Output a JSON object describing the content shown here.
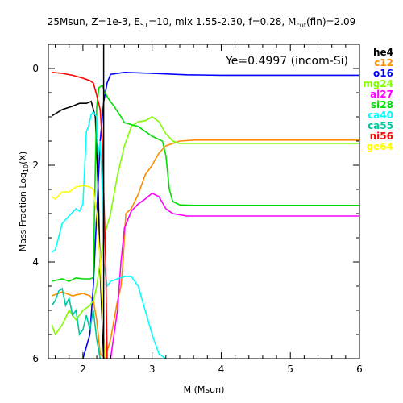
{
  "chart_data": {
    "type": "line",
    "title": {
      "part1": "25Msun, Z=1e-3, E",
      "e_sub": "51",
      "part2": "=10, mix 1.55-2.30, f=0.28, M",
      "m_sub": "cut",
      "part3": "(fin)=2.09"
    },
    "xlabel": "M (Msun)",
    "ylabel": {
      "main": "Mass Fraction Log",
      "sub": "10",
      "tail": "(X)"
    },
    "xlim": [
      1.5,
      6
    ],
    "ylim": [
      -6,
      0.5
    ],
    "x_ticks": [
      "2",
      "3",
      "4",
      "5",
      "6"
    ],
    "y_ticks": [
      "0",
      "2",
      "4",
      "6"
    ],
    "y_tick_values": [
      0,
      -2,
      -4,
      -6
    ],
    "x_tick_values": [
      2,
      3,
      4,
      5,
      6
    ],
    "annotation": "Ye=0.4997 (incom-Si)",
    "vline_x": 2.3,
    "series": [
      {
        "name": "he4",
        "color": "#000000",
        "points": [
          [
            1.55,
            -0.98
          ],
          [
            1.7,
            -0.85
          ],
          [
            1.85,
            -0.78
          ],
          [
            1.95,
            -0.72
          ],
          [
            2.05,
            -0.72
          ],
          [
            2.12,
            -0.68
          ],
          [
            2.18,
            -1.0
          ],
          [
            2.22,
            -2.5
          ],
          [
            2.25,
            -4.2
          ],
          [
            2.3,
            -6.0
          ]
        ]
      },
      {
        "name": "c12",
        "color": "#ff8c00",
        "points": [
          [
            1.55,
            -4.7
          ],
          [
            1.7,
            -4.62
          ],
          [
            1.85,
            -4.7
          ],
          [
            2.0,
            -4.65
          ],
          [
            2.1,
            -4.7
          ],
          [
            2.15,
            -4.8
          ],
          [
            2.2,
            -5.2
          ],
          [
            2.25,
            -5.9
          ],
          [
            2.32,
            -6.0
          ],
          [
            2.4,
            -5.6
          ],
          [
            2.5,
            -4.8
          ],
          [
            2.55,
            -4.5
          ],
          [
            2.58,
            -4.0
          ],
          [
            2.62,
            -3.0
          ],
          [
            2.7,
            -2.9
          ],
          [
            2.8,
            -2.6
          ],
          [
            2.9,
            -2.2
          ],
          [
            3.0,
            -2.0
          ],
          [
            3.1,
            -1.75
          ],
          [
            3.2,
            -1.6
          ],
          [
            3.4,
            -1.5
          ],
          [
            3.6,
            -1.48
          ],
          [
            4.0,
            -1.48
          ],
          [
            5.0,
            -1.48
          ],
          [
            6.0,
            -1.48
          ]
        ]
      },
      {
        "name": "o16",
        "color": "#0000ff",
        "points": [
          [
            2.0,
            -6.0
          ],
          [
            2.1,
            -5.5
          ],
          [
            2.15,
            -4.5
          ],
          [
            2.2,
            -3.0
          ],
          [
            2.25,
            -1.5
          ],
          [
            2.3,
            -0.7
          ],
          [
            2.35,
            -0.3
          ],
          [
            2.4,
            -0.12
          ],
          [
            2.6,
            -0.08
          ],
          [
            3.0,
            -0.1
          ],
          [
            3.5,
            -0.13
          ],
          [
            4.0,
            -0.14
          ],
          [
            5.0,
            -0.14
          ],
          [
            6.0,
            -0.14
          ]
        ]
      },
      {
        "name": "mg24",
        "color": "#80ff00",
        "points": [
          [
            1.55,
            -5.3
          ],
          [
            1.6,
            -5.5
          ],
          [
            1.7,
            -5.3
          ],
          [
            1.8,
            -5.0
          ],
          [
            1.9,
            -5.2
          ],
          [
            2.0,
            -5.0
          ],
          [
            2.1,
            -4.9
          ],
          [
            2.15,
            -4.8
          ],
          [
            2.2,
            -4.5
          ],
          [
            2.25,
            -4.0
          ],
          [
            2.3,
            -3.5
          ],
          [
            2.4,
            -3.0
          ],
          [
            2.5,
            -2.2
          ],
          [
            2.6,
            -1.6
          ],
          [
            2.7,
            -1.2
          ],
          [
            2.8,
            -1.1
          ],
          [
            2.9,
            -1.08
          ],
          [
            3.0,
            -1.0
          ],
          [
            3.1,
            -1.1
          ],
          [
            3.2,
            -1.35
          ],
          [
            3.3,
            -1.5
          ],
          [
            3.4,
            -1.55
          ],
          [
            3.6,
            -1.55
          ],
          [
            4.0,
            -1.55
          ],
          [
            5.0,
            -1.55
          ],
          [
            6.0,
            -1.55
          ]
        ]
      },
      {
        "name": "al27",
        "color": "#ff00ff",
        "points": [
          [
            2.4,
            -6.0
          ],
          [
            2.45,
            -5.5
          ],
          [
            2.5,
            -5.0
          ],
          [
            2.55,
            -4.0
          ],
          [
            2.6,
            -3.3
          ],
          [
            2.7,
            -2.95
          ],
          [
            2.8,
            -2.8
          ],
          [
            2.9,
            -2.7
          ],
          [
            3.0,
            -2.58
          ],
          [
            3.1,
            -2.65
          ],
          [
            3.2,
            -2.9
          ],
          [
            3.3,
            -3.0
          ],
          [
            3.5,
            -3.05
          ],
          [
            4.0,
            -3.05
          ],
          [
            5.0,
            -3.05
          ],
          [
            6.0,
            -3.05
          ]
        ]
      },
      {
        "name": "si28",
        "color": "#00dd00",
        "points": [
          [
            1.55,
            -4.4
          ],
          [
            1.7,
            -4.35
          ],
          [
            1.8,
            -4.4
          ],
          [
            1.9,
            -4.33
          ],
          [
            2.0,
            -4.35
          ],
          [
            2.1,
            -4.35
          ],
          [
            2.15,
            -4.33
          ],
          [
            2.18,
            -2.0
          ],
          [
            2.2,
            -0.8
          ],
          [
            2.23,
            -0.4
          ],
          [
            2.28,
            -0.35
          ],
          [
            2.32,
            -0.5
          ],
          [
            2.38,
            -0.65
          ],
          [
            2.45,
            -0.78
          ],
          [
            2.55,
            -1.0
          ],
          [
            2.6,
            -1.12
          ],
          [
            2.8,
            -1.2
          ],
          [
            3.0,
            -1.4
          ],
          [
            3.15,
            -1.5
          ],
          [
            3.2,
            -1.8
          ],
          [
            3.25,
            -2.5
          ],
          [
            3.3,
            -2.75
          ],
          [
            3.4,
            -2.82
          ],
          [
            3.6,
            -2.83
          ],
          [
            4.0,
            -2.83
          ],
          [
            5.0,
            -2.83
          ],
          [
            6.0,
            -2.83
          ]
        ]
      },
      {
        "name": "ca40",
        "color": "#00ffff",
        "points": [
          [
            1.55,
            -3.8
          ],
          [
            1.6,
            -3.75
          ],
          [
            1.7,
            -3.2
          ],
          [
            1.8,
            -3.05
          ],
          [
            1.9,
            -2.9
          ],
          [
            1.95,
            -2.95
          ],
          [
            2.0,
            -2.8
          ],
          [
            2.05,
            -1.3
          ],
          [
            2.08,
            -1.2
          ],
          [
            2.12,
            -0.95
          ],
          [
            2.15,
            -0.9
          ],
          [
            2.2,
            -1.0
          ],
          [
            2.22,
            -1.8
          ],
          [
            2.25,
            -1.5
          ],
          [
            2.28,
            -2.5
          ],
          [
            2.3,
            -4.0
          ],
          [
            2.35,
            -4.5
          ],
          [
            2.4,
            -4.4
          ],
          [
            2.5,
            -4.35
          ],
          [
            2.6,
            -4.3
          ],
          [
            2.7,
            -4.3
          ],
          [
            2.8,
            -4.5
          ],
          [
            2.9,
            -5.0
          ],
          [
            3.0,
            -5.5
          ],
          [
            3.1,
            -5.9
          ],
          [
            3.2,
            -6.0
          ]
        ]
      },
      {
        "name": "ca55",
        "color": "#00c8a0",
        "points": [
          [
            1.55,
            -4.9
          ],
          [
            1.6,
            -4.8
          ],
          [
            1.65,
            -4.6
          ],
          [
            1.7,
            -4.55
          ],
          [
            1.75,
            -4.9
          ],
          [
            1.8,
            -4.75
          ],
          [
            1.85,
            -5.1
          ],
          [
            1.9,
            -5.0
          ],
          [
            1.95,
            -5.5
          ],
          [
            2.0,
            -5.4
          ],
          [
            2.05,
            -5.1
          ],
          [
            2.1,
            -5.4
          ],
          [
            2.15,
            -5.0
          ],
          [
            2.2,
            -5.6
          ],
          [
            2.25,
            -6.0
          ]
        ]
      },
      {
        "name": "ni56",
        "color": "#ff0000",
        "points": [
          [
            1.55,
            -0.08
          ],
          [
            1.7,
            -0.1
          ],
          [
            1.85,
            -0.14
          ],
          [
            2.0,
            -0.2
          ],
          [
            2.1,
            -0.25
          ],
          [
            2.15,
            -0.3
          ],
          [
            2.2,
            -0.55
          ],
          [
            2.25,
            -0.85
          ],
          [
            2.28,
            -1.5
          ],
          [
            2.3,
            -2.5
          ],
          [
            2.33,
            -4.0
          ],
          [
            2.35,
            -6.0
          ]
        ]
      },
      {
        "name": "ge64",
        "color": "#ffff00",
        "points": [
          [
            1.55,
            -2.65
          ],
          [
            1.6,
            -2.7
          ],
          [
            1.7,
            -2.55
          ],
          [
            1.8,
            -2.55
          ],
          [
            1.9,
            -2.45
          ],
          [
            2.0,
            -2.42
          ],
          [
            2.1,
            -2.45
          ],
          [
            2.15,
            -2.5
          ],
          [
            2.2,
            -3.0
          ],
          [
            2.25,
            -4.0
          ],
          [
            2.3,
            -5.5
          ],
          [
            2.33,
            -6.0
          ]
        ]
      }
    ]
  }
}
